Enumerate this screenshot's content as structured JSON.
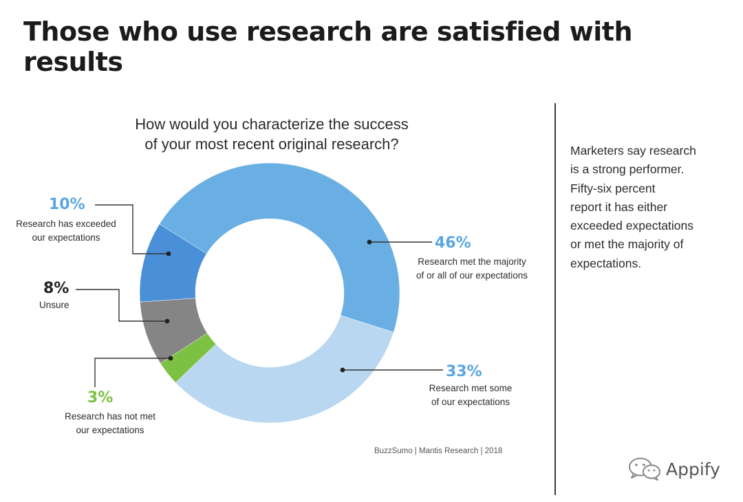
{
  "title": "Those who use research are satisfied with results",
  "chart_data": {
    "type": "donut",
    "title_line1": "How would you characterize the success",
    "title_line2": "of your most recent original research?",
    "slices": [
      {
        "value": 46,
        "label": "46%",
        "desc1": "Research met the majority",
        "desc2": "of or all of our expectations",
        "color": "#6aafe3"
      },
      {
        "value": 33,
        "label": "33%",
        "desc1": "Research met some",
        "desc2": "of our expectations",
        "color": "#b9d7f0"
      },
      {
        "value": 3,
        "label": "3%",
        "desc1": "Research has not met",
        "desc2": "our expectations",
        "color": "#7dc142"
      },
      {
        "value": 8,
        "label": "8%",
        "desc1": "Unsure",
        "desc2": "",
        "color": "#858585"
      },
      {
        "value": 10,
        "label": "10%",
        "desc1": "Research has exceeded",
        "desc2": "our expectations",
        "color": "#4a90d9"
      }
    ]
  },
  "side_note": {
    "lines": [
      "Marketers say research",
      "is a strong performer.",
      "Fifty-six percent",
      "report it has either",
      "exceeded expectations",
      "or met the majority of",
      "expectations."
    ]
  },
  "source": "BuzzSumo | Mantis Research | 2018",
  "brand": {
    "name": "Appify",
    "icon": "wechat-icon"
  },
  "colors": {
    "pct_text_blue": "#5aa6e0",
    "pct_text_green": "#7dc142",
    "pct_text_dark": "#222222",
    "divider": "#3a3a3a"
  }
}
